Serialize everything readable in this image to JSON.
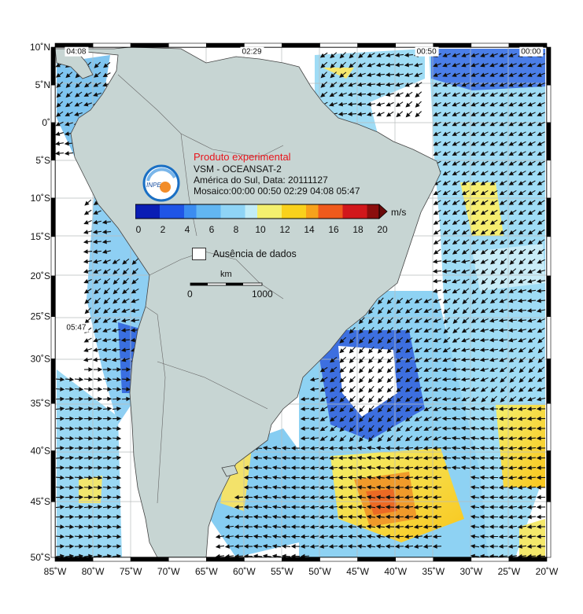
{
  "map": {
    "lat_labels": [
      "10˚N",
      "5˚N",
      "0˚",
      "5˚S",
      "10˚S",
      "15˚S",
      "20˚S",
      "25˚S",
      "30˚S",
      "35˚S",
      "40˚S",
      "45˚S",
      "50˚S"
    ],
    "lon_labels": [
      "85˚W",
      "80˚W",
      "75˚W",
      "70˚W",
      "65˚W",
      "60˚W",
      "55˚W",
      "50˚W",
      "45˚W",
      "40˚W",
      "35˚W",
      "30˚W",
      "25˚W",
      "20˚W"
    ],
    "lon_range": [
      -85,
      -20
    ],
    "lat_range": [
      -50,
      10
    ],
    "pass_times": [
      {
        "text": "04:08",
        "lon": -83.5,
        "lat": 9.1
      },
      {
        "text": "02:29",
        "lon": -60.3,
        "lat": 9.1
      },
      {
        "text": "00:50",
        "lon": -37.2,
        "lat": 9.1
      },
      {
        "text": "00:00",
        "lon": -23.4,
        "lat": 9.1
      },
      {
        "text": "05:47",
        "lon": -83.5,
        "lat": -26.6
      }
    ],
    "colors": {
      "land": "#c7d5d3",
      "coast": "#444444",
      "grid": "#aab0b0",
      "no_data": "#ffffff",
      "vector": "#111111",
      "frame": "#000000"
    }
  },
  "info": {
    "experimental": "Produto experimental",
    "satellite": "VSM - OCEANSAT-2",
    "region_date": "América do Sul, Data: 20111127",
    "mosaic": "Mosaico:00:00 00:50 02:29 04:08 05:47",
    "experimental_color": "#e8141b",
    "logo_text": "INPE"
  },
  "colorbar": {
    "unit": "m/s",
    "ticks": [
      "0",
      "2",
      "4",
      "6",
      "8",
      "10",
      "12",
      "14",
      "16",
      "18",
      "20"
    ],
    "stops": [
      "#0a1db4",
      "#1f55e6",
      "#3b8cf0",
      "#62b6f2",
      "#8fd4f6",
      "#c2ecf7",
      "#f4f06e",
      "#f9d11c",
      "#f7a21b",
      "#ef5a1c",
      "#d1171b",
      "#8b0d0c"
    ]
  },
  "legend": {
    "no_data_label": "Ausência de dados"
  },
  "scale": {
    "unit": "km",
    "start": "0",
    "end": "1000"
  }
}
